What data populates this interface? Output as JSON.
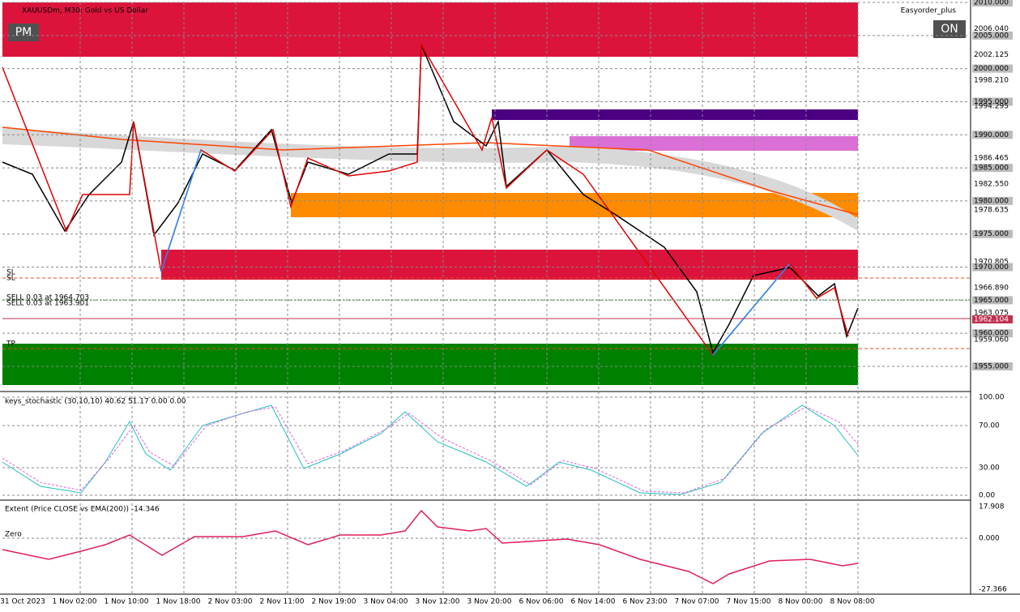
{
  "window": {
    "symbol": "XAUUSDm, M30:  Gold vs US Dollar",
    "pm_button": "PM",
    "on_button": "ON",
    "ea_label": "Easyorder_plus"
  },
  "main_pane": {
    "price_labels": [
      "2010.000",
      "2006.040",
      "2005.000",
      "2002.125",
      "2000.000",
      "1998.210",
      "1995.000",
      "1994.295",
      "1990.000",
      "1986.465",
      "1985.000",
      "1982.550",
      "1980.000",
      "1978.635",
      "1975.000",
      "1970.805",
      "1970.000",
      "1966.890",
      "1965.000",
      "1963.075",
      "1962.104",
      "1960.000",
      "1959.060",
      "1955.000"
    ],
    "order_labels": [
      "SL",
      "SL",
      "SELL 0.03 at 1964.703",
      "SELL 0.03 at 1963.901",
      "TP"
    ]
  },
  "stochastic_pane": {
    "title": "keys_stochastic (30,10,10) 40.62 51.17 0.00 0.00",
    "levels": [
      "100.00",
      "70.00",
      "30.00",
      "0.00"
    ]
  },
  "extent_pane": {
    "title": "Extent (Price CLOSE vs EMA(200)) -14.346",
    "zero_label": "Zero",
    "levels": [
      "17.908",
      "0.000",
      "-27.366"
    ]
  },
  "time_axis": [
    "31 Oct 2023",
    "1 Nov 02:00",
    "1 Nov 10:00",
    "1 Nov 18:00",
    "2 Nov 03:00",
    "2 Nov 11:00",
    "2 Nov 19:00",
    "3 Nov 04:00",
    "3 Nov 12:00",
    "3 Nov 20:00",
    "6 Nov 06:00",
    "6 Nov 14:00",
    "6 Nov 23:00",
    "7 Nov 07:00",
    "7 Nov 15:00",
    "8 Nov 00:00",
    "8 Nov 08:00"
  ]
}
